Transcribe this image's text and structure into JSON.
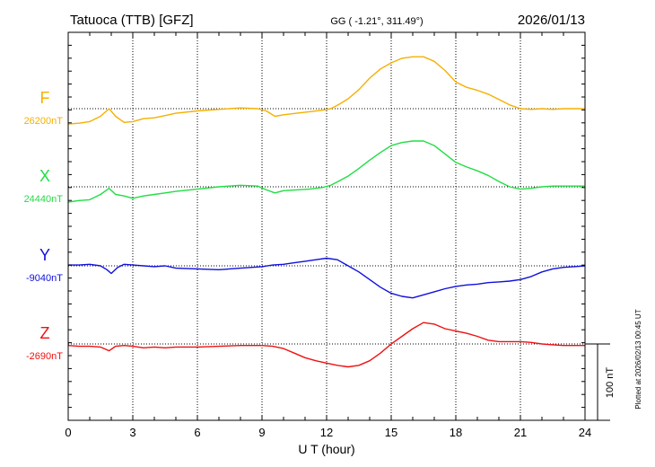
{
  "chart_data": {
    "type": "line",
    "title": "Tatuoca (TTB)  [GFZ]",
    "coords": "GG ( -1.21°, 311.49°)",
    "date": "2026/01/13",
    "plotted_note": "Plotted at 2026/02/13 00:45 UT",
    "xlabel": "U T (hour)",
    "xlim": [
      0,
      24
    ],
    "xticks": [
      "0",
      "3",
      "6",
      "9",
      "12",
      "15",
      "18",
      "21",
      "24"
    ],
    "scale_label": "100 nT",
    "scale_nT": 100,
    "grid": true,
    "series": [
      {
        "name": "F",
        "baseline_label": "26200nT",
        "color": "#f5b000",
        "baseline_nT": 26200,
        "points": [
          [
            0,
            -20
          ],
          [
            0.5,
            -19
          ],
          [
            1.0,
            -17
          ],
          [
            1.5,
            -10
          ],
          [
            1.9,
            0
          ],
          [
            2.2,
            -10
          ],
          [
            2.6,
            -18
          ],
          [
            3.0,
            -17
          ],
          [
            3.5,
            -13
          ],
          [
            4.0,
            -12
          ],
          [
            4.5,
            -9
          ],
          [
            5.0,
            -6
          ],
          [
            6.0,
            -3
          ],
          [
            7.0,
            -1
          ],
          [
            8.0,
            1
          ],
          [
            8.8,
            0
          ],
          [
            9.2,
            -3
          ],
          [
            9.6,
            -10
          ],
          [
            10.0,
            -8
          ],
          [
            10.6,
            -6
          ],
          [
            11.2,
            -4
          ],
          [
            11.8,
            -2
          ],
          [
            12.2,
            0
          ],
          [
            12.6,
            6
          ],
          [
            13.0,
            13
          ],
          [
            13.5,
            25
          ],
          [
            14.0,
            40
          ],
          [
            14.5,
            52
          ],
          [
            15.0,
            60
          ],
          [
            15.5,
            66
          ],
          [
            16.0,
            68
          ],
          [
            16.5,
            68
          ],
          [
            17.0,
            62
          ],
          [
            17.5,
            50
          ],
          [
            18.0,
            35
          ],
          [
            18.5,
            28
          ],
          [
            19.0,
            24
          ],
          [
            19.5,
            19
          ],
          [
            20.0,
            12
          ],
          [
            20.5,
            5
          ],
          [
            21.0,
            0
          ],
          [
            21.5,
            -1
          ],
          [
            22.0,
            0
          ],
          [
            22.5,
            -1
          ],
          [
            23.0,
            0
          ],
          [
            23.5,
            0
          ],
          [
            24.0,
            0
          ]
        ]
      },
      {
        "name": "X",
        "baseline_label": "24440nT",
        "color": "#22dd44",
        "baseline_nT": 24440,
        "points": [
          [
            0,
            -20
          ],
          [
            0.5,
            -18
          ],
          [
            1.0,
            -17
          ],
          [
            1.5,
            -10
          ],
          [
            1.9,
            -2
          ],
          [
            2.2,
            -10
          ],
          [
            2.6,
            -12
          ],
          [
            3.0,
            -15
          ],
          [
            3.5,
            -12
          ],
          [
            4.0,
            -10
          ],
          [
            4.5,
            -8
          ],
          [
            5.0,
            -6
          ],
          [
            6.0,
            -3
          ],
          [
            7.0,
            0
          ],
          [
            8.0,
            2
          ],
          [
            8.8,
            1
          ],
          [
            9.2,
            -4
          ],
          [
            9.6,
            -8
          ],
          [
            10.0,
            -5
          ],
          [
            10.6,
            -4
          ],
          [
            11.2,
            -3
          ],
          [
            11.8,
            -1
          ],
          [
            12.2,
            2
          ],
          [
            12.6,
            8
          ],
          [
            13.0,
            14
          ],
          [
            13.5,
            24
          ],
          [
            14.0,
            35
          ],
          [
            14.5,
            45
          ],
          [
            15.0,
            54
          ],
          [
            15.5,
            58
          ],
          [
            16.0,
            60
          ],
          [
            16.5,
            60
          ],
          [
            17.0,
            54
          ],
          [
            17.5,
            43
          ],
          [
            18.0,
            32
          ],
          [
            18.5,
            26
          ],
          [
            19.0,
            21
          ],
          [
            19.5,
            15
          ],
          [
            20.0,
            7
          ],
          [
            20.5,
            0
          ],
          [
            21.0,
            -3
          ],
          [
            21.5,
            -2
          ],
          [
            22.0,
            0
          ],
          [
            22.5,
            1
          ],
          [
            23.0,
            1
          ],
          [
            23.5,
            1
          ],
          [
            24.0,
            1
          ]
        ]
      },
      {
        "name": "Y",
        "baseline_label": "-9040nT",
        "color": "#1010dd",
        "baseline_nT": -9040,
        "points": [
          [
            0,
            1
          ],
          [
            0.5,
            1
          ],
          [
            1.0,
            2
          ],
          [
            1.5,
            0
          ],
          [
            1.8,
            -5
          ],
          [
            2.0,
            -10
          ],
          [
            2.3,
            -2
          ],
          [
            2.6,
            2
          ],
          [
            3.0,
            1
          ],
          [
            3.5,
            0
          ],
          [
            4.0,
            -1
          ],
          [
            4.5,
            0
          ],
          [
            5.0,
            -3
          ],
          [
            6.0,
            -4
          ],
          [
            7.0,
            -5
          ],
          [
            8.0,
            -3
          ],
          [
            9.0,
            -1
          ],
          [
            9.5,
            1
          ],
          [
            10.0,
            2
          ],
          [
            10.5,
            4
          ],
          [
            11.0,
            6
          ],
          [
            11.5,
            8
          ],
          [
            12.0,
            10
          ],
          [
            12.5,
            8
          ],
          [
            13.0,
            0
          ],
          [
            13.5,
            -8
          ],
          [
            14.0,
            -18
          ],
          [
            14.5,
            -28
          ],
          [
            15.0,
            -36
          ],
          [
            15.5,
            -40
          ],
          [
            16.0,
            -42
          ],
          [
            16.5,
            -38
          ],
          [
            17.0,
            -34
          ],
          [
            17.5,
            -30
          ],
          [
            18.0,
            -27
          ],
          [
            18.5,
            -25
          ],
          [
            19.0,
            -24
          ],
          [
            19.5,
            -22
          ],
          [
            20.0,
            -21
          ],
          [
            20.5,
            -20
          ],
          [
            21.0,
            -18
          ],
          [
            21.5,
            -14
          ],
          [
            22.0,
            -8
          ],
          [
            22.5,
            -4
          ],
          [
            23.0,
            -2
          ],
          [
            23.5,
            -1
          ],
          [
            24.0,
            0
          ]
        ]
      },
      {
        "name": "Z",
        "baseline_label": "-2690nT",
        "color": "#ee1111",
        "baseline_nT": -2690,
        "points": [
          [
            0,
            -2
          ],
          [
            0.5,
            -3
          ],
          [
            1.0,
            -3
          ],
          [
            1.5,
            -4
          ],
          [
            1.9,
            -9
          ],
          [
            2.2,
            -3
          ],
          [
            2.6,
            -2
          ],
          [
            3.0,
            -3
          ],
          [
            3.5,
            -5
          ],
          [
            4.0,
            -4
          ],
          [
            4.5,
            -5
          ],
          [
            5.0,
            -4
          ],
          [
            6.0,
            -4
          ],
          [
            7.0,
            -3
          ],
          [
            8.0,
            -2
          ],
          [
            9.0,
            -2
          ],
          [
            9.5,
            -3
          ],
          [
            10.0,
            -6
          ],
          [
            10.5,
            -12
          ],
          [
            11.0,
            -18
          ],
          [
            11.5,
            -22
          ],
          [
            12.0,
            -25
          ],
          [
            12.5,
            -28
          ],
          [
            13.0,
            -30
          ],
          [
            13.5,
            -28
          ],
          [
            14.0,
            -22
          ],
          [
            14.5,
            -12
          ],
          [
            15.0,
            0
          ],
          [
            15.5,
            10
          ],
          [
            16.0,
            20
          ],
          [
            16.5,
            28
          ],
          [
            17.0,
            26
          ],
          [
            17.5,
            20
          ],
          [
            18.0,
            17
          ],
          [
            18.5,
            14
          ],
          [
            19.0,
            10
          ],
          [
            19.5,
            5
          ],
          [
            20.0,
            3
          ],
          [
            20.5,
            3
          ],
          [
            21.0,
            3
          ],
          [
            21.5,
            2
          ],
          [
            22.0,
            0
          ],
          [
            22.5,
            -1
          ],
          [
            23.0,
            -2
          ],
          [
            23.5,
            -2
          ],
          [
            24.0,
            -2
          ]
        ]
      }
    ]
  }
}
